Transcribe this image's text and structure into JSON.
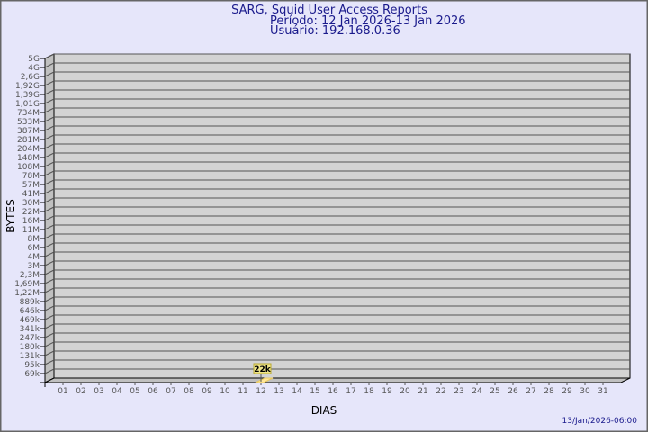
{
  "chart_data": {
    "type": "bar",
    "title": "SARG, Squid User Access Reports",
    "subtitle_period": "Período: 12 Jan 2026-13 Jan 2026",
    "subtitle_user": "Usuário: 192.168.0.36",
    "xlabel": "DIAS",
    "ylabel": "BYTES",
    "categories": [
      "01",
      "02",
      "03",
      "04",
      "05",
      "06",
      "07",
      "08",
      "09",
      "10",
      "11",
      "12",
      "13",
      "14",
      "15",
      "16",
      "17",
      "18",
      "19",
      "20",
      "21",
      "22",
      "23",
      "24",
      "25",
      "26",
      "27",
      "28",
      "29",
      "30",
      "31"
    ],
    "y_tick_labels": [
      "5G",
      "4G",
      "2,6G",
      "1,92G",
      "1,39G",
      "1,01G",
      "734M",
      "533M",
      "387M",
      "281M",
      "204M",
      "148M",
      "108M",
      "78M",
      "57M",
      "41M",
      "30M",
      "22M",
      "16M",
      "11M",
      "8M",
      "6M",
      "4M",
      "3M",
      "2,3M",
      "1,69M",
      "1,22M",
      "889k",
      "646k",
      "469k",
      "341k",
      "247k",
      "180k",
      "131k",
      "95k",
      "69k"
    ],
    "y_scale": "log",
    "grid": true,
    "bars": [
      {
        "category": "12",
        "value": 22000,
        "label": "22k"
      }
    ],
    "bar_color": "#ffe699",
    "label_box_color": "#f0e68c"
  },
  "footer_timestamp": "13/Jan/2026-06:00"
}
